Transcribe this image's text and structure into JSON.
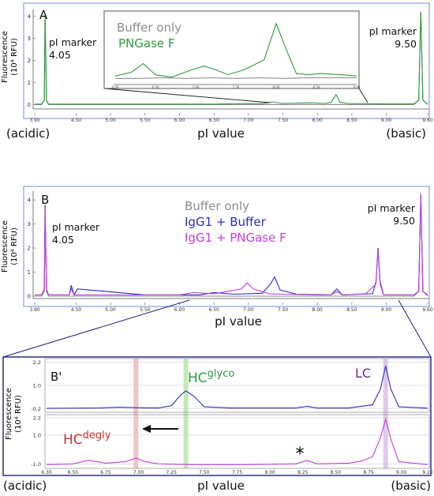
{
  "chart_data": [
    {
      "id": "A",
      "panel_label": "A",
      "type": "line",
      "xlabel": "pI value",
      "ylabel_line1": "Fluorescence",
      "ylabel_line2": "(10⁴ RFU)",
      "xlim": [
        3.9,
        9.6
      ],
      "ylim": [
        -0.2,
        4.3
      ],
      "x_ticks": [
        "3.90",
        "4.50",
        "5.00",
        "5.50",
        "6.00",
        "6.50",
        "7.00",
        "7.50",
        "8.00",
        "8.50",
        "9.00",
        "9.60"
      ],
      "y_ticks": [
        "0",
        "1",
        "2",
        "3",
        "4"
      ],
      "end_labels": [
        "(acidic)",
        "(basic)"
      ],
      "annotations": [
        {
          "line1": "pI marker",
          "line2": "4.05",
          "x": 4.05
        },
        {
          "line1": "pI marker",
          "line2": "9.50",
          "x": 9.5
        }
      ],
      "series": [
        {
          "name": "Buffer only",
          "color": "#8c8c8c",
          "x": [
            3.9,
            4.0,
            4.04,
            4.05,
            4.07,
            4.1,
            4.5,
            5.0,
            5.5,
            6.0,
            6.5,
            7.0,
            7.5,
            8.0,
            8.5,
            9.0,
            9.4,
            9.47,
            9.5,
            9.53,
            9.6
          ],
          "y": [
            0,
            0,
            0.2,
            4.1,
            0.2,
            0,
            0,
            0,
            0,
            0,
            0,
            0,
            0,
            0,
            0,
            0,
            0,
            0.2,
            4.2,
            0.2,
            0
          ]
        },
        {
          "name": "PNGase F",
          "color": "#2e9a3e",
          "x": [
            3.9,
            4.0,
            4.04,
            4.05,
            4.07,
            4.1,
            4.5,
            5.0,
            5.5,
            6.0,
            6.5,
            7.0,
            7.2,
            7.35,
            7.5,
            7.9,
            8.1,
            8.2,
            8.27,
            8.33,
            8.45,
            9.0,
            9.4,
            9.47,
            9.5,
            9.53,
            9.6
          ],
          "y": [
            0.02,
            0.02,
            0.2,
            4.1,
            0.2,
            0.02,
            0.02,
            0.02,
            0.02,
            0.02,
            0.02,
            0.05,
            0.04,
            0.12,
            0.05,
            0.08,
            0.05,
            0.1,
            0.45,
            0.1,
            0.05,
            0.03,
            0.03,
            0.2,
            4.2,
            0.2,
            0.02
          ]
        }
      ]
    },
    {
      "id": "A-inset",
      "type": "line",
      "xlim": [
        6.0,
        9.0
      ],
      "x_ticks": [
        "6.00",
        "6.50",
        "7.00",
        "7.50",
        "8.00",
        "8.50",
        "9.00"
      ],
      "legend": [
        "Buffer only",
        "PNGase F"
      ],
      "series": [
        {
          "name": "Buffer only",
          "color": "#8c8c8c",
          "x": [
            6.0,
            6.3,
            6.6,
            6.9,
            7.2,
            7.5,
            7.8,
            8.1,
            8.4,
            8.7,
            9.0
          ],
          "y": [
            0.06,
            0.06,
            0.07,
            0.06,
            0.07,
            0.06,
            0.07,
            0.06,
            0.07,
            0.07,
            0.07
          ]
        },
        {
          "name": "PNGase F",
          "color": "#2e9a3e",
          "x": [
            6.0,
            6.2,
            6.35,
            6.5,
            6.7,
            6.95,
            7.1,
            7.25,
            7.4,
            7.6,
            7.85,
            8.0,
            8.15,
            8.25,
            8.4,
            8.55,
            8.8,
            9.0
          ],
          "y": [
            0.1,
            0.16,
            0.3,
            0.12,
            0.08,
            0.2,
            0.26,
            0.2,
            0.12,
            0.2,
            0.36,
            0.95,
            0.45,
            0.14,
            0.12,
            0.14,
            0.12,
            0.1
          ]
        }
      ]
    },
    {
      "id": "B",
      "panel_label": "B",
      "type": "line",
      "xlabel": "pI value",
      "ylabel_line1": "Fluorescence",
      "ylabel_line2": "(10⁴ RFU)",
      "xlim": [
        3.9,
        9.6
      ],
      "ylim": [
        -0.1,
        4.3
      ],
      "x_ticks": [
        "3.90",
        "4.50",
        "5.00",
        "5.50",
        "6.00",
        "6.50",
        "7.00",
        "7.50",
        "8.00",
        "8.50",
        "9.00",
        "9.60"
      ],
      "y_ticks": [
        "0",
        "1",
        "2",
        "3",
        "4"
      ],
      "annotations": [
        {
          "line1": "pI marker",
          "line2": "4.05",
          "x": 4.05
        },
        {
          "line1": "pI marker",
          "line2": "9.50",
          "x": 9.5
        }
      ],
      "legend": [
        {
          "label": "Buffer only",
          "color": "#8c8c8c"
        },
        {
          "label": "IgG1 + Buffer",
          "color": "#2a2ac8"
        },
        {
          "label": "IgG1 + PNGase F",
          "color": "#c23ee0"
        }
      ],
      "series": [
        {
          "name": "Buffer only",
          "color": "#8c8c8c",
          "x": [
            3.9,
            4.0,
            4.04,
            4.05,
            4.07,
            4.1,
            5.0,
            6.0,
            7.0,
            8.0,
            9.0,
            9.4,
            9.47,
            9.5,
            9.53,
            9.6
          ],
          "y": [
            0,
            0,
            0.2,
            3.6,
            0.2,
            0,
            0,
            0,
            0,
            0,
            0,
            0,
            0.2,
            4.3,
            0.2,
            0
          ]
        },
        {
          "name": "IgG1 + Buffer",
          "color": "#2a2ac8",
          "x": [
            3.9,
            4.0,
            4.04,
            4.05,
            4.07,
            4.1,
            4.35,
            4.4,
            4.43,
            4.47,
            4.52,
            5.5,
            6.3,
            6.5,
            6.8,
            7.2,
            7.32,
            7.38,
            7.46,
            7.7,
            8.2,
            8.28,
            8.36,
            8.8,
            8.85,
            8.88,
            8.91,
            8.96,
            9.4,
            9.47,
            9.5,
            9.53,
            9.6
          ],
          "y": [
            0.05,
            0.05,
            0.3,
            3.8,
            0.3,
            0.05,
            0.05,
            0.05,
            0.45,
            0.05,
            0.3,
            0.05,
            0.05,
            0.15,
            0.08,
            0.12,
            0.5,
            0.8,
            0.25,
            0.08,
            0.05,
            0.3,
            0.05,
            0.1,
            0.6,
            2.0,
            0.6,
            0.05,
            0.05,
            0.2,
            4.2,
            0.2,
            0.05
          ]
        },
        {
          "name": "IgG1 + PNGase F",
          "color": "#c23ee0",
          "x": [
            3.9,
            4.0,
            4.04,
            4.05,
            4.07,
            4.1,
            4.4,
            4.43,
            4.47,
            5.5,
            6.0,
            6.2,
            6.5,
            6.7,
            6.9,
            6.98,
            7.07,
            7.3,
            7.5,
            8.0,
            8.2,
            8.28,
            8.36,
            8.7,
            8.85,
            8.88,
            8.91,
            8.96,
            9.4,
            9.47,
            9.5,
            9.53,
            9.6
          ],
          "y": [
            0.05,
            0.05,
            0.3,
            3.6,
            0.3,
            0.05,
            0.05,
            0.3,
            0.05,
            0.05,
            0.05,
            0.15,
            0.1,
            0.2,
            0.3,
            0.55,
            0.3,
            0.1,
            0.08,
            0.05,
            0.05,
            0.2,
            0.05,
            0.1,
            0.5,
            1.9,
            0.5,
            0.05,
            0.05,
            0.2,
            4.2,
            0.2,
            0.05
          ]
        }
      ]
    },
    {
      "id": "B-prime",
      "panel_label": "B'",
      "type": "line",
      "xlabel": "pI value",
      "ylabel_line1": "Fluorescence",
      "ylabel_line2": "(10⁴ RFU)",
      "xlim": [
        6.3,
        9.2
      ],
      "x_ticks": [
        "6.30",
        "6.50",
        "6.75",
        "7.00",
        "7.25",
        "7.50",
        "7.75",
        "8.00",
        "8.25",
        "8.50",
        "8.75",
        "9.00",
        "9.20"
      ],
      "end_labels": [
        "(acidic)",
        "(basic)"
      ],
      "highlight_bands": [
        {
          "x": 6.98,
          "color": "#f2b8b8"
        },
        {
          "x": 7.36,
          "color": "#b8e6a8"
        },
        {
          "x": 8.88,
          "color": "#dcc0ea"
        }
      ],
      "panels": [
        {
          "name": "top",
          "ylim": [
            -0.3,
            2.3
          ],
          "y_ticks": [
            "2.2",
            "1.0",
            "-0.2"
          ],
          "labels": [
            {
              "text": "HC",
              "sup": "glyco",
              "color": "#2e9a3e",
              "x": 7.36
            },
            {
              "text": "LC",
              "sup": "",
              "color": "#6b2a8a",
              "x": 8.88
            }
          ],
          "series": [
            {
              "name": "IgG1 + Buffer",
              "color": "#2a2ac8",
              "x": [
                6.3,
                6.7,
                6.85,
                7.0,
                7.15,
                7.25,
                7.32,
                7.36,
                7.42,
                7.5,
                7.7,
                8.2,
                8.28,
                8.36,
                8.6,
                8.78,
                8.84,
                8.88,
                8.92,
                8.98,
                9.2
              ],
              "y": [
                -0.18,
                -0.16,
                -0.12,
                -0.15,
                -0.16,
                -0.05,
                0.5,
                0.72,
                0.45,
                -0.1,
                -0.16,
                -0.16,
                -0.08,
                -0.16,
                -0.16,
                0.0,
                0.8,
                2.0,
                0.8,
                -0.1,
                -0.17
              ]
            }
          ]
        },
        {
          "name": "bottom",
          "ylim": [
            -1.2,
            2.3
          ],
          "y_ticks": [
            "2.2",
            "1.0",
            "-1.0"
          ],
          "labels": [
            {
              "text": "HC",
              "sup": "degly",
              "color": "#d03030",
              "x": 6.98
            },
            {
              "text": "*",
              "sup": "",
              "color": "#111111",
              "x": 8.28
            }
          ],
          "series": [
            {
              "name": "IgG1 + PNGase F",
              "color": "#c23ee0",
              "x": [
                6.3,
                6.5,
                6.62,
                6.75,
                6.9,
                6.98,
                7.05,
                7.15,
                7.4,
                7.8,
                8.2,
                8.28,
                8.36,
                8.6,
                8.7,
                8.78,
                8.84,
                8.88,
                8.92,
                8.98,
                9.2
              ],
              "y": [
                -1.05,
                -1.0,
                -0.75,
                -0.95,
                -0.85,
                -0.6,
                -0.85,
                -1.0,
                -1.05,
                -1.05,
                -1.0,
                -0.75,
                -1.0,
                -0.95,
                -0.8,
                -0.5,
                0.8,
                2.1,
                0.7,
                -0.85,
                -1.05
              ]
            }
          ]
        }
      ]
    }
  ]
}
